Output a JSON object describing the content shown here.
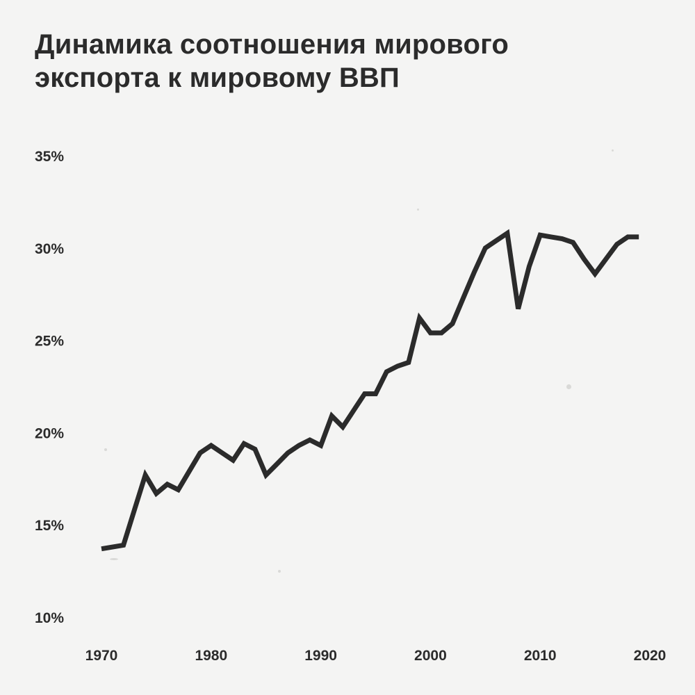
{
  "chart_data": {
    "type": "line",
    "title": "Динамика соотношения мирового экспорта к мировому ВВП",
    "xlabel": "",
    "ylabel": "",
    "xlim": [
      1970,
      2020
    ],
    "ylim": [
      10,
      35
    ],
    "x_ticks": [
      1970,
      1980,
      1990,
      2000,
      2010,
      2020
    ],
    "x_tick_labels": [
      "1970",
      "1980",
      "1990",
      "2000",
      "2010",
      "2020"
    ],
    "y_ticks": [
      10,
      15,
      20,
      25,
      30,
      35
    ],
    "y_tick_labels": [
      "10%",
      "15%",
      "20%",
      "25%",
      "30%",
      "35%"
    ],
    "grid": false,
    "line_color": "#2b2b2b",
    "series": [
      {
        "x": [
          1970,
          1971,
          1972,
          1973,
          1974,
          1975,
          1976,
          1977,
          1978,
          1979,
          1980,
          1981,
          1982,
          1983,
          1984,
          1985,
          1986,
          1987,
          1988,
          1989,
          1990,
          1991,
          1992,
          1993,
          1994,
          1995,
          1996,
          1997,
          1998,
          1999,
          2000,
          2001,
          2002,
          2003,
          2004,
          2005,
          2006,
          2007,
          2008,
          2009,
          2010,
          2011,
          2012,
          2013,
          2014,
          2015,
          2016,
          2017,
          2018,
          2019
        ],
        "values": [
          13.7,
          13.8,
          13.9,
          15.8,
          17.7,
          16.7,
          17.2,
          16.9,
          17.9,
          18.9,
          19.3,
          18.9,
          18.5,
          19.4,
          19.1,
          17.7,
          18.3,
          18.9,
          19.3,
          19.6,
          19.3,
          20.9,
          20.3,
          21.2,
          22.1,
          22.1,
          23.3,
          23.6,
          23.8,
          26.2,
          25.4,
          25.4,
          25.9,
          27.3,
          28.7,
          30.0,
          30.4,
          30.8,
          26.7,
          29.0,
          30.7,
          30.6,
          30.5,
          30.3,
          29.4,
          28.6,
          29.4,
          30.2,
          30.6,
          30.6
        ]
      }
    ]
  }
}
